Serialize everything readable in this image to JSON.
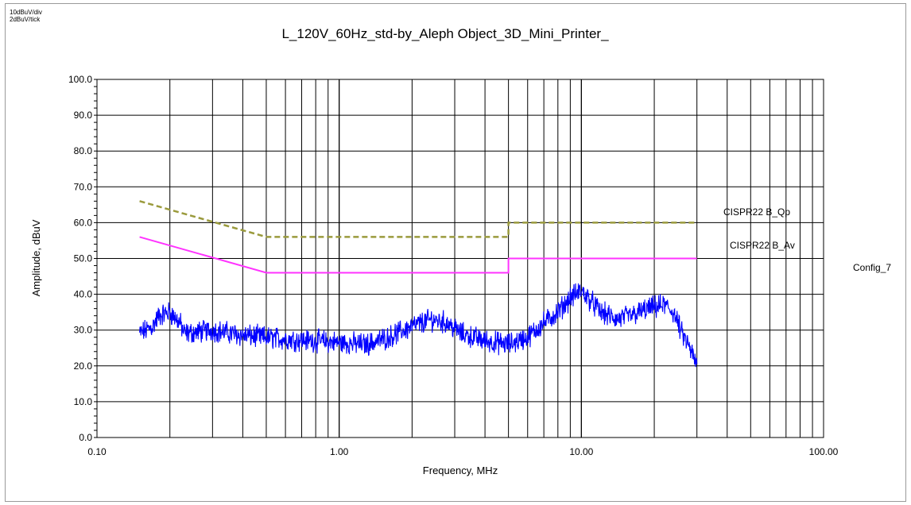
{
  "scale_notes": {
    "per_div": "10dBuV/div",
    "per_tick": "2dBuV/tick"
  },
  "side_label": "Config_7",
  "chart_data": {
    "type": "line",
    "title": "L_120V_60Hz_std-by_Aleph Object_3D_Mini_Printer_",
    "xlabel": "Frequency, MHz",
    "ylabel": "Amplitude, dBuV",
    "x_scale": "log",
    "xlim": [
      0.1,
      100
    ],
    "ylim": [
      0,
      100
    ],
    "x_tick_labels": [
      "0.10",
      "1.00",
      "10.00",
      "100.00"
    ],
    "x_tick_values": [
      0.1,
      1,
      10,
      100
    ],
    "y_tick_labels": [
      "0.0",
      "10.0",
      "20.0",
      "30.0",
      "40.0",
      "50.0",
      "60.0",
      "70.0",
      "80.0",
      "90.0",
      "100.0"
    ],
    "y_tick_values": [
      0,
      10,
      20,
      30,
      40,
      50,
      60,
      70,
      80,
      90,
      100
    ],
    "grid": true,
    "series": [
      {
        "name": "CISPR22 B_Qp",
        "color": "#9a9a3c",
        "style": "dashed",
        "points": [
          [
            0.15,
            66
          ],
          [
            0.5,
            56
          ],
          [
            5,
            56
          ],
          [
            5,
            60
          ],
          [
            30,
            60
          ]
        ]
      },
      {
        "name": "CISPR22 B_Av",
        "color": "#ff33ff",
        "style": "solid",
        "points": [
          [
            0.15,
            56
          ],
          [
            0.5,
            46
          ],
          [
            5,
            46
          ],
          [
            5,
            50
          ],
          [
            30,
            50
          ]
        ]
      },
      {
        "name": "",
        "color": "#0000ff",
        "style": "noisy",
        "points": [
          [
            0.15,
            29
          ],
          [
            0.17,
            31
          ],
          [
            0.18,
            34
          ],
          [
            0.2,
            35
          ],
          [
            0.22,
            32
          ],
          [
            0.23,
            29
          ],
          [
            0.3,
            30
          ],
          [
            0.4,
            28.5
          ],
          [
            0.6,
            27.5
          ],
          [
            0.8,
            27
          ],
          [
            1.0,
            26.5
          ],
          [
            1.3,
            26
          ],
          [
            1.6,
            28
          ],
          [
            2.0,
            31
          ],
          [
            2.4,
            33
          ],
          [
            2.8,
            32
          ],
          [
            3.2,
            29
          ],
          [
            4.0,
            27
          ],
          [
            5.0,
            26
          ],
          [
            6.0,
            28
          ],
          [
            7.0,
            32
          ],
          [
            8.0,
            35
          ],
          [
            9.0,
            39
          ],
          [
            10.0,
            41
          ],
          [
            11.0,
            38
          ],
          [
            12.0,
            35
          ],
          [
            14.0,
            33
          ],
          [
            16.0,
            34
          ],
          [
            19.0,
            36
          ],
          [
            22.0,
            37
          ],
          [
            24.0,
            35
          ],
          [
            26.0,
            29
          ],
          [
            28.0,
            25
          ],
          [
            30.0,
            20
          ]
        ]
      }
    ]
  }
}
